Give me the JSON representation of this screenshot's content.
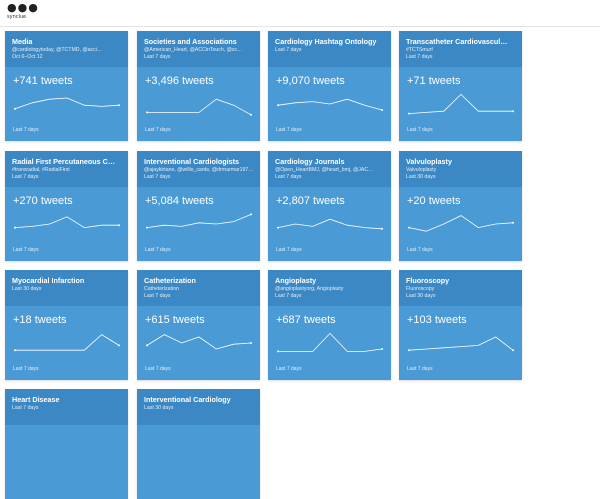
{
  "app": {
    "menu_icon": "more-horizontal-icon",
    "brand": "synclue"
  },
  "cards": [
    {
      "title": "Media",
      "sub": "@cardiologytoday, @TCTMD, @acci…",
      "sub2": "Oct 6–Oct 12",
      "value": "+741 tweets",
      "footer": "Last 7 days",
      "spark": [
        0.3,
        0.55,
        0.7,
        0.75,
        0.45,
        0.4,
        0.45
      ]
    },
    {
      "title": "Societies and Associations",
      "sub": "@American_Heart, @ACCinTouch, @sc…",
      "sub2": "Last 7 days",
      "value": "+3,496 tweets",
      "footer": "Last 7 days",
      "spark": [
        0.15,
        0.15,
        0.15,
        0.15,
        0.7,
        0.45,
        0.05
      ]
    },
    {
      "title": "Cardiology Hashtag Ontology",
      "sub": "Last 7 days",
      "sub2": "",
      "value": "+9,070 tweets",
      "footer": "Last 7 days",
      "spark": [
        0.45,
        0.55,
        0.6,
        0.5,
        0.7,
        0.45,
        0.25
      ]
    },
    {
      "title": "Transcatheter Cardiovascul…",
      "sub": "#TCTSmurf",
      "sub2": "Last 7 days",
      "value": "+71 tweets",
      "footer": "Last 7 days",
      "spark": [
        0.1,
        0.15,
        0.2,
        0.9,
        0.2,
        0.2,
        0.2
      ]
    },
    {
      "title": "Radial First Percutaneous C…",
      "sub": "#transradial, #RadialFirst",
      "sub2": "Last 7 days",
      "value": "+270 tweets",
      "footer": "Last 7 days",
      "spark": [
        0.35,
        0.4,
        0.5,
        0.8,
        0.35,
        0.45,
        0.45
      ]
    },
    {
      "title": "Interventional Cardiologists",
      "sub": "@ajaykirtane, @willis_cards, @drmarmar197…",
      "sub2": "Last 7 days",
      "value": "+5,084 tweets",
      "footer": "Last 7 days",
      "spark": [
        0.35,
        0.45,
        0.4,
        0.55,
        0.5,
        0.6,
        0.9
      ]
    },
    {
      "title": "Cardiology Journals",
      "sub": "@Open_HeartBMJ, @heart_bmj, @JAC…",
      "sub2": "Last 7 days",
      "value": "+2,807 tweets",
      "footer": "Last 7 days",
      "spark": [
        0.35,
        0.5,
        0.4,
        0.7,
        0.45,
        0.35,
        0.3
      ]
    },
    {
      "title": "Valvuloplasty",
      "sub": "Valvuloplasty",
      "sub2": "Last 30 days",
      "value": "+20 tweets",
      "footer": "Last 7 days",
      "spark": [
        0.35,
        0.2,
        0.5,
        0.85,
        0.35,
        0.5,
        0.55
      ]
    },
    {
      "title": "Myocardial Infarction",
      "sub": "Last 30 days",
      "sub2": "",
      "value": "+18 tweets",
      "footer": "Last 7 days",
      "spark": [
        0.2,
        0.2,
        0.2,
        0.2,
        0.2,
        0.85,
        0.4
      ]
    },
    {
      "title": "Catheterization",
      "sub": "Catheterization",
      "sub2": "Last 7 days",
      "value": "+615 tweets",
      "footer": "Last 7 days",
      "spark": [
        0.4,
        0.85,
        0.5,
        0.75,
        0.25,
        0.45,
        0.5
      ]
    },
    {
      "title": "Angioplasty",
      "sub": "@angioplastyorg, Angioplasty",
      "sub2": "Last 7 days",
      "value": "+687 tweets",
      "footer": "Last 7 days",
      "spark": [
        0.15,
        0.15,
        0.15,
        0.9,
        0.15,
        0.15,
        0.25
      ]
    },
    {
      "title": "Fluoroscopy",
      "sub": "Fluoroscopy",
      "sub2": "Last 30 days",
      "value": "+103 tweets",
      "footer": "Last 7 days",
      "spark": [
        0.2,
        0.25,
        0.3,
        0.35,
        0.4,
        0.75,
        0.2
      ]
    },
    {
      "title": "Heart Disease",
      "sub": "Last 7 days",
      "sub2": "",
      "value": "",
      "footer": "",
      "spark": []
    },
    {
      "title": "Interventional Cardiology",
      "sub": "Last 30 days",
      "sub2": "",
      "value": "",
      "footer": "",
      "spark": []
    }
  ]
}
